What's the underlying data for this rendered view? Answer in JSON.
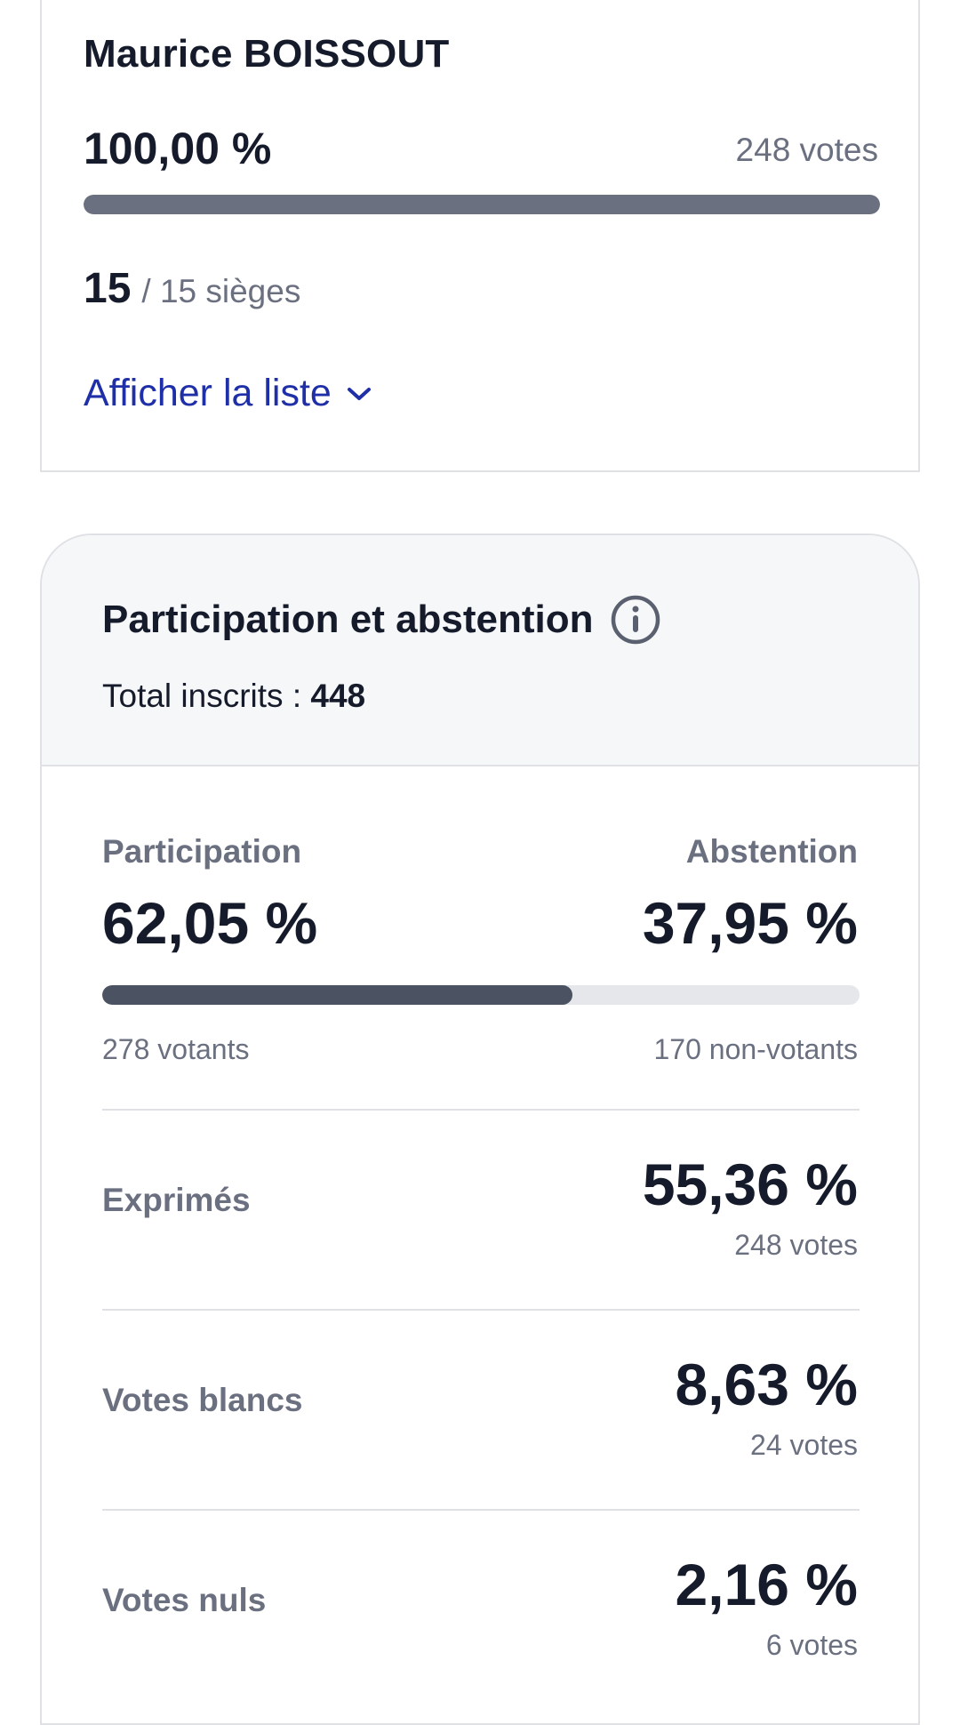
{
  "candidate": {
    "name": "Maurice BOISSOUT",
    "percent": "100,00 %",
    "votes": "248 votes",
    "bar_fraction": 1.0,
    "seats_won": "15",
    "seats_total": "/ 15 sièges",
    "show_list_label": "Afficher la liste",
    "show_list_icon": "chevron-down-icon"
  },
  "participation": {
    "title": "Participation et abstention",
    "info_icon": "info-icon",
    "total_label": "Total inscrits : ",
    "total_value": "448",
    "participation_label": "Participation",
    "participation_percent": "62,05 %",
    "abstention_label": "Abstention",
    "abstention_percent": "37,95 %",
    "participation_fraction": 0.6205,
    "voters": "278 votants",
    "non_voters": "170 non-votants",
    "rows": [
      {
        "label": "Exprimés",
        "percent": "55,36 %",
        "votes": "248 votes"
      },
      {
        "label": "Votes blancs",
        "percent": "8,63 %",
        "votes": "24 votes"
      },
      {
        "label": "Votes nuls",
        "percent": "2,16 %",
        "votes": "6 votes"
      }
    ]
  },
  "colors": {
    "text_dark": "#161b2b",
    "text_grey": "#6b7080",
    "link_blue": "#1e2fa8",
    "bar_track": "#e5e7eb",
    "candidate_bar": "#6b7080",
    "participation_bar": "#4b5261"
  }
}
